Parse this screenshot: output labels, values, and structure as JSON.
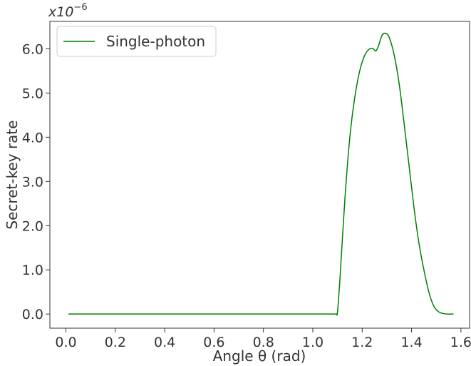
{
  "chart_data": {
    "type": "line",
    "title": "",
    "xlabel": "Angle θ (rad)",
    "ylabel": "Secret-key rate",
    "y_offset_label": "x10",
    "y_offset_exponent": "−6",
    "xlim": [
      -0.065,
      1.635
    ],
    "ylim": [
      -0.32,
      6.62
    ],
    "x_ticks": [
      0.0,
      0.2,
      0.4,
      0.6,
      0.8,
      1.0,
      1.2,
      1.4,
      1.6
    ],
    "x_tick_labels": [
      "0.0",
      "0.2",
      "0.4",
      "0.6",
      "0.8",
      "1.0",
      "1.2",
      "1.4",
      "1.6"
    ],
    "y_ticks": [
      0.0,
      1.0,
      2.0,
      3.0,
      4.0,
      5.0,
      6.0
    ],
    "y_tick_labels": [
      "0.0",
      "1.0",
      "2.0",
      "3.0",
      "4.0",
      "5.0",
      "6.0"
    ],
    "grid": false,
    "legend_position": "top-left",
    "series": [
      {
        "name": "Single-photon",
        "color": "#008000",
        "x": [
          0.01,
          0.3,
          0.6,
          0.9,
          1.08,
          1.095,
          1.1,
          1.11,
          1.13,
          1.15,
          1.17,
          1.19,
          1.21,
          1.23,
          1.245,
          1.255,
          1.265,
          1.28,
          1.295,
          1.31,
          1.33,
          1.35,
          1.37,
          1.39,
          1.41,
          1.43,
          1.45,
          1.47,
          1.49,
          1.51,
          1.53,
          1.545,
          1.56,
          1.57
        ],
        "y": [
          0.0,
          0.0,
          0.0,
          0.0,
          0.0,
          0.0,
          0.05,
          0.8,
          2.6,
          4.0,
          4.9,
          5.5,
          5.85,
          6.0,
          6.0,
          5.95,
          6.05,
          6.3,
          6.35,
          6.25,
          5.85,
          5.2,
          4.3,
          3.35,
          2.4,
          1.6,
          1.0,
          0.5,
          0.18,
          0.05,
          0.01,
          0.0,
          0.0,
          0.0
        ]
      }
    ]
  }
}
